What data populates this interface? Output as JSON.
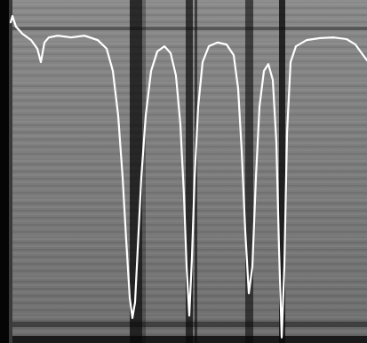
{
  "chart_data": {
    "type": "line",
    "color": "#ffffff",
    "tick_labels": false,
    "grid": false,
    "xlim": [
      0,
      413
    ],
    "ylim": [
      0,
      100
    ],
    "x": [
      12,
      14,
      18,
      25,
      35,
      42,
      46,
      50,
      55,
      65,
      80,
      95,
      110,
      120,
      127,
      133,
      138,
      142,
      146,
      149,
      152,
      155,
      159,
      164,
      170,
      177,
      185,
      192,
      198,
      203,
      207,
      210,
      213,
      216,
      219,
      223,
      228,
      235,
      245,
      255,
      263,
      268,
      272,
      276,
      280,
      284,
      288,
      292,
      297,
      302,
      307,
      311,
      314,
      317,
      320,
      323,
      327,
      333,
      345,
      360,
      375,
      390,
      400,
      407,
      413
    ],
    "values": [
      93.5,
      95.3,
      92.2,
      90.2,
      88.3,
      85.8,
      81.9,
      87.6,
      89.1,
      89.6,
      89.1,
      89.6,
      88.3,
      85.8,
      79.3,
      66.3,
      48.2,
      30.1,
      13.2,
      7.3,
      11.9,
      27.5,
      48.2,
      66.3,
      79.3,
      85.0,
      86.5,
      84.5,
      78.0,
      63.7,
      43.0,
      22.3,
      8.0,
      24.9,
      48.2,
      68.9,
      81.9,
      86.5,
      87.6,
      87.0,
      83.9,
      74.1,
      56.0,
      32.6,
      14.5,
      22.3,
      48.2,
      68.9,
      79.3,
      81.3,
      76.7,
      58.5,
      27.5,
      1.6,
      22.3,
      61.1,
      81.9,
      86.5,
      88.3,
      88.9,
      89.1,
      88.6,
      87.0,
      84.5,
      82.4
    ]
  }
}
